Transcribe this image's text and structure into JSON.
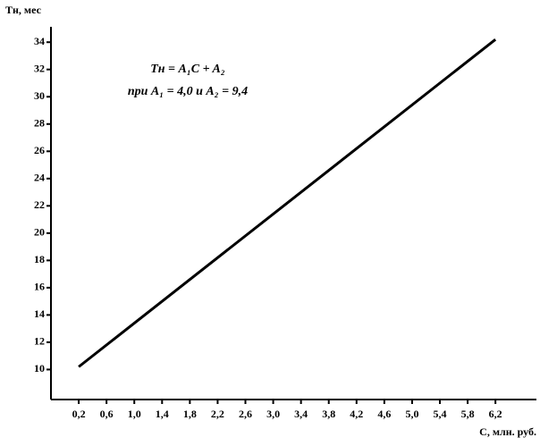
{
  "chart_data": {
    "type": "line",
    "y_label": "Tн, мес",
    "x_label": "C, млн. руб.",
    "annotations": [
      "Tн = A₁C + A₂",
      "при A₁ = 4,0 и A₂ = 9,4"
    ],
    "x": [
      0.2,
      6.2
    ],
    "values": [
      10.2,
      34.2
    ],
    "color": "#000000",
    "xlim": [
      -0.2,
      6.7
    ],
    "ylim": [
      7.8,
      34.8
    ],
    "xticks": [
      {
        "value": 0.2,
        "label": "0,2"
      },
      {
        "value": 0.6,
        "label": "0,6"
      },
      {
        "value": 1.0,
        "label": "1,0"
      },
      {
        "value": 1.4,
        "label": "1,4"
      },
      {
        "value": 1.8,
        "label": "1,8"
      },
      {
        "value": 2.2,
        "label": "2,2"
      },
      {
        "value": 2.6,
        "label": "2,6"
      },
      {
        "value": 3.0,
        "label": "3,0"
      },
      {
        "value": 3.4,
        "label": "3,4"
      },
      {
        "value": 3.8,
        "label": "3,8"
      },
      {
        "value": 4.2,
        "label": "4,2"
      },
      {
        "value": 4.6,
        "label": "4,6"
      },
      {
        "value": 5.0,
        "label": "5,0"
      },
      {
        "value": 5.4,
        "label": "5,4"
      },
      {
        "value": 5.8,
        "label": "5,8"
      },
      {
        "value": 6.2,
        "label": "6,2"
      }
    ],
    "yticks": [
      10,
      12,
      14,
      16,
      18,
      20,
      22,
      24,
      26,
      28,
      30,
      32,
      34
    ]
  }
}
